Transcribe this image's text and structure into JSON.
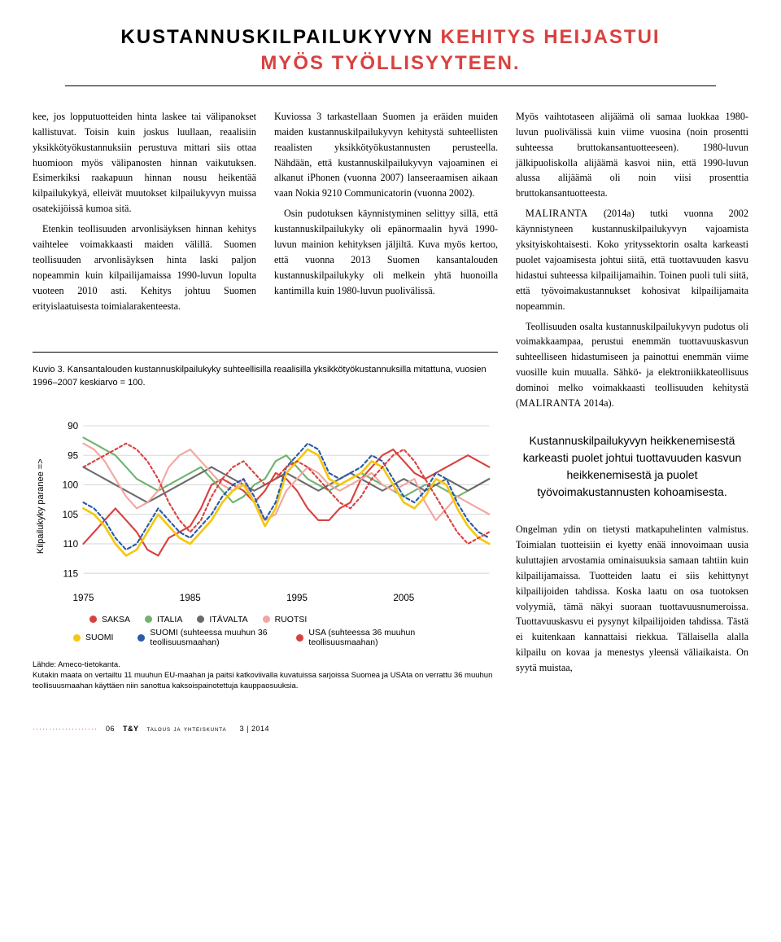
{
  "heading": {
    "black1": "KUSTANNUSKILPAILUKYVYN ",
    "red": "KEHITYS HEIJASTUI MYÖS TYÖLLISYYTEEN.",
    "black2": ""
  },
  "col1": {
    "p1": "kee, jos lopputuotteiden hinta laskee tai välipanokset kallistuvat. Toisin kuin joskus luullaan, reaalisiin yksikkötyökustannuksiin perustuva mittari siis ottaa huomioon myös välipanosten hinnan vaikutuksen. Esimerkiksi raakapuun hinnan nousu heikentää kilpailukykyä, elleivät muutokset kilpailukyvyn muissa osatekijöissä kumoa sitä.",
    "p2": "Etenkin teollisuuden arvonlisäyksen hinnan kehitys vaihtelee voimakkaasti maiden välillä. Suomen teollisuuden arvonlisäyksen hinta laski paljon nopeammin kuin kilpailijamaissa 1990-luvun lopulta vuoteen 2010 asti. Kehitys johtuu Suomen erityislaatuisesta toimialarakenteesta."
  },
  "col2": {
    "p1": "Kuviossa 3 tarkastellaan Suomen ja eräiden muiden maiden kustannuskilpailukyvyn kehitystä suhteellisten reaalisten yksikkötyökustannusten perusteella. Nähdään, että kustannuskilpailukyvyn vajoaminen ei alkanut iPhonen (vuonna 2007) lanseeraamisen aikaan vaan Nokia 9210 Communicatorin (vuonna 2002).",
    "p2": "Osin pudotuksen käynnistyminen selittyy sillä, että kustannuskilpailukyky oli epänormaalin hyvä 1990-luvun mainion kehityksen jäljiltä. Kuva myös kertoo, että vuonna 2013 Suomen kansantalouden kustannuskilpailukyky oli melkein yhtä huonoilla kantimilla kuin 1980-luvun puolivälissä."
  },
  "col3": {
    "p1": "Myös vaihtotaseen alijäämä oli samaa luokkaa 1980-luvun puolivälissä kuin viime vuosina (noin prosentti suhteessa bruttokansantuotteeseen). 1980-luvun jälkipuoliskolla alijäämä kasvoi niin, että 1990-luvun alussa alijäämä oli noin viisi prosenttia bruttokansantuotteesta.",
    "p2a": "MALIRANTA",
    "p2b": " (2014a) tutki vuonna 2002 käynnistyneen kustannuskilpailukyvyn vajoamista yksityiskohtaisesti. Koko yrityssektorin osalta karkeasti puolet vajoamisesta johtui siitä, että tuottavuuden kasvu hidastui suhteessa kilpailijamaihin. Toinen puoli tuli siitä, että työvoimakustannukset kohosivat kilpailijamaita nopeammin.",
    "p3a": "Teollisuuden osalta kustannuskilpailukyvyn pudotus oli voimakkaampaa, perustui enemmän tuottavuuskasvun suhteelliseen hidastumiseen ja painottui enemmän viime vuosille kuin muualla. Sähkö- ja elektroniikkateollisuus dominoi melko voimakkaasti teollisuuden kehitystä (",
    "p3b": "MALIRANTA",
    "p3c": " 2014a).",
    "p4": "Ongelman ydin on tietysti matkapuhelinten valmistus. Toimialan tuotteisiin ei kyetty enää innovoimaan uusia kuluttajien arvostamia ominaisuuksia samaan tahtiin kuin kilpailijamaissa. Tuotteiden laatu ei siis kehittynyt kilpailijoiden tahdissa. Koska laatu on osa tuotoksen volyymiä, tämä näkyi suoraan tuottavuusnumeroissa. Tuottavuuskasvu ei pysynyt kilpailijoiden tahdissa. Tästä ei kuitenkaan kannattaisi riekkua. Tällaisella alalla kilpailu on kovaa ja menestys yleensä väliaikaista. On syytä muistaa,"
  },
  "pullquote": "Kustannuskilpailukyvyn heikkenemisestä karkeasti puolet johtui tuottavuuden kasvun heikkenemisestä ja puolet työvoimakustannusten kohoamisesta.",
  "figure": {
    "caption": "Kuvio 3. Kansantalouden kustannuskilpailukyky suhteellisilla reaalisilla yksikkötyökustannuksilla mitattuna, vuosien 1996–2007 keskiarvo = 100.",
    "ylabel": "Kilpailukyky paranee =>",
    "source_label": "Lähde: Ameco-tietokanta.",
    "source_note": "Kutakin maata on vertailtu 11 muuhun EU-maahan ja paitsi katkoviivalla kuvatuissa sarjoissa Suomea ja USAta on verrattu 36 muuhun teollisuusmaahan käyttäen niin sanottua kaksoispainotettuja kauppaosuuksia.",
    "x_ticks": [
      1975,
      1985,
      1995,
      2005
    ],
    "y_ticks": [
      90,
      95,
      100,
      105,
      110,
      115
    ],
    "xlim": [
      1975,
      2013
    ],
    "ylim_top": 88,
    "ylim_bottom": 117,
    "grid_color": "#d9d9d9",
    "axis_font": 11,
    "series": [
      {
        "name": "SAKSA",
        "color": "#d9413f",
        "dash": "",
        "width": 2,
        "y": [
          110,
          108,
          106,
          104,
          106,
          108,
          111,
          112,
          109,
          108,
          107,
          104,
          100,
          99,
          100,
          101,
          103,
          101,
          98,
          99,
          101,
          104,
          106,
          106,
          104,
          103,
          99,
          97,
          95,
          94,
          96,
          98,
          99,
          98,
          97,
          96,
          95,
          96,
          97
        ]
      },
      {
        "name": "ITALIA",
        "color": "#6fb36f",
        "dash": "",
        "width": 2,
        "y": [
          92,
          93,
          94,
          95,
          97,
          99,
          100,
          101,
          100,
          99,
          98,
          97,
          99,
          101,
          103,
          102,
          100,
          99,
          96,
          95,
          97,
          99,
          100,
          101,
          100,
          99,
          98,
          99,
          100,
          101,
          102,
          101,
          100,
          100,
          101,
          102,
          101,
          100,
          99
        ]
      },
      {
        "name": "ITÄVALTA",
        "color": "#6b6b6b",
        "dash": "",
        "width": 2,
        "y": [
          97,
          98,
          99,
          100,
          101,
          102,
          103,
          102,
          101,
          100,
          99,
          98,
          97,
          98,
          99,
          100,
          101,
          100,
          99,
          98,
          99,
          100,
          101,
          100,
          99,
          98,
          99,
          100,
          101,
          100,
          99,
          100,
          101,
          100,
          99,
          100,
          101,
          100,
          99
        ]
      },
      {
        "name": "RUOTSI",
        "color": "#f3a6a0",
        "dash": "",
        "width": 2,
        "y": [
          93,
          94,
          96,
          99,
          102,
          104,
          103,
          101,
          97,
          95,
          94,
          96,
          98,
          100,
          101,
          99,
          103,
          106,
          105,
          101,
          99,
          97,
          98,
          100,
          101,
          100,
          99,
          98,
          100,
          101,
          100,
          99,
          103,
          106,
          104,
          102,
          103,
          104,
          105
        ]
      },
      {
        "name": "SUOMI",
        "color": "#f4c80e",
        "dash": "",
        "width": 2.5,
        "y": [
          104,
          105,
          107,
          110,
          112,
          111,
          108,
          105,
          107,
          109,
          110,
          108,
          106,
          103,
          101,
          100,
          103,
          107,
          104,
          98,
          96,
          94,
          95,
          99,
          100,
          99,
          98,
          96,
          97,
          100,
          103,
          104,
          102,
          99,
          100,
          104,
          107,
          109,
          110
        ]
      },
      {
        "name": "SUOMI36",
        "label": "SUOMI (suhteessa muuhun 36 teollisuusmaahan)",
        "color": "#2a5aa8",
        "dash": "4,3",
        "width": 2,
        "y": [
          103,
          104,
          106,
          109,
          111,
          110,
          107,
          104,
          106,
          108,
          109,
          107,
          105,
          102,
          100,
          99,
          102,
          106,
          103,
          97,
          95,
          93,
          94,
          98,
          99,
          98,
          97,
          95,
          96,
          99,
          102,
          103,
          101,
          98,
          99,
          103,
          106,
          108,
          109
        ]
      },
      {
        "name": "USA36",
        "label": "USA (suhteessa 36 muuhun teollisuusmaahan)",
        "color": "#d9413f",
        "dash": "3,3",
        "width": 2,
        "y": [
          97,
          96,
          95,
          94,
          93,
          94,
          96,
          99,
          103,
          106,
          108,
          106,
          102,
          99,
          97,
          96,
          98,
          100,
          99,
          97,
          96,
          97,
          99,
          101,
          103,
          104,
          102,
          99,
          97,
          95,
          94,
          96,
          99,
          102,
          105,
          108,
          110,
          109,
          108
        ]
      }
    ],
    "legend": [
      {
        "label": "SAKSA",
        "color": "#d9413f"
      },
      {
        "label": "ITALIA",
        "color": "#6fb36f"
      },
      {
        "label": "ITÄVALTA",
        "color": "#6b6b6b"
      },
      {
        "label": "RUOTSI",
        "color": "#f3a6a0"
      }
    ],
    "legend2": [
      {
        "label": "SUOMI",
        "color": "#f4c80e"
      },
      {
        "label": "SUOMI (suhteessa muuhun 36 teollisuusmaahan)",
        "color": "#2a5aa8"
      },
      {
        "label": "USA (suhteessa 36 muuhun teollisuusmaahan)",
        "color": "#d9413f"
      }
    ]
  },
  "footer": {
    "page": "06",
    "tny": "T&Y",
    "mag": "talous ja yhteiskunta",
    "issue": "3 | 2014"
  }
}
